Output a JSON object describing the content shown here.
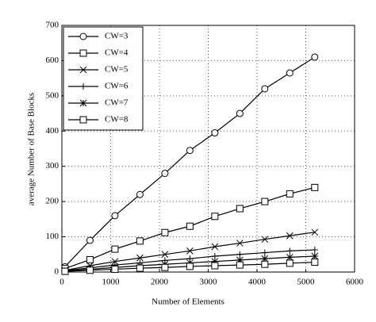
{
  "chart_data": {
    "type": "line",
    "xlabel": "Number of Elements",
    "ylabel": "average Number of Base Blocks",
    "x": [
      64,
      576,
      1088,
      1600,
      2112,
      2624,
      3136,
      3648,
      4160,
      4672,
      5184
    ],
    "series": [
      {
        "name": "CW=3",
        "color": "#000000",
        "marker": "circle",
        "values": [
          15,
          90,
          160,
          220,
          280,
          345,
          395,
          450,
          520,
          565,
          610
        ]
      },
      {
        "name": "CW=4",
        "color": "#000000",
        "marker": "square",
        "values": [
          10,
          35,
          65,
          88,
          112,
          130,
          158,
          180,
          200,
          222,
          240
        ]
      },
      {
        "name": "CW=5",
        "color": "#000000",
        "marker": "x",
        "values": [
          5,
          18,
          30,
          40,
          50,
          60,
          72,
          82,
          93,
          103,
          113
        ]
      },
      {
        "name": "CW=6",
        "color": "#000000",
        "marker": "plus",
        "values": [
          4,
          12,
          20,
          26,
          33,
          38,
          45,
          50,
          55,
          60,
          63
        ]
      },
      {
        "name": "CW=7",
        "color": "#000000",
        "marker": "star",
        "values": [
          3,
          8,
          13,
          18,
          22,
          26,
          30,
          34,
          38,
          42,
          45
        ]
      },
      {
        "name": "CW=8",
        "color": "#000000",
        "marker": "square",
        "values": [
          2,
          5,
          8,
          11,
          13,
          16,
          18,
          20,
          22,
          25,
          28
        ]
      }
    ],
    "xlim": [
      0,
      6000
    ],
    "xticks": [
      0,
      1000,
      2000,
      3000,
      4000,
      5000,
      6000
    ],
    "ylim": [
      0,
      700
    ],
    "yticks": [
      0,
      100,
      200,
      300,
      400,
      500,
      600,
      700
    ],
    "grid": true,
    "legend": "upper-left"
  }
}
